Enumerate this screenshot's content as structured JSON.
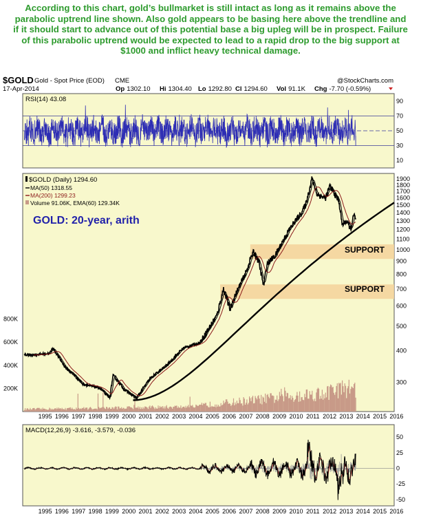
{
  "caption": "According to this chart, gold’s bullmarket is still intact as long as it remains above the parabolic uptrend line shown. Also gold appears to be basing here above the trendline and if it should start to advance out of this potential base a big upleg will be in prospect. Failure of this parabolic uptrend would be expected to lead to a rapid drop to the big support at $1000 and inflict heavy technical damage.",
  "header": {
    "symbol": "$GOLD",
    "desc": "Gold - Spot Price (EOD)",
    "exchange": "CME",
    "watermark": "@StockCharts.com",
    "date": "17-Apr-2014",
    "open_label": "Op",
    "open": "1302.10",
    "high_label": "Hi",
    "high": "1304.40",
    "low_label": "Lo",
    "low": "1292.80",
    "close_label": "Cl",
    "close": "1294.60",
    "vol_label": "Vol",
    "vol": "91.1K",
    "chg_label": "Chg",
    "chg": "-7.70 (-0.59%)"
  },
  "colors": {
    "panel_bg": "#f8f8cc",
    "price": "#000000",
    "rsi": "#2d2db4",
    "ma50": "#000000",
    "ma200": "#8b1a1a",
    "volume": "#c89a88",
    "trendline": "#000000",
    "support_band": "#f5d29a",
    "title_text": "#2222aa",
    "caption": "#2e9b2e"
  },
  "chart_data": [
    {
      "type": "line",
      "panel": "rsi",
      "legend": "RSI(14) 43.08",
      "ylim": [
        0,
        100
      ],
      "yticks": [
        10,
        30,
        50,
        70,
        90
      ],
      "reference_lines": [
        30,
        50,
        70
      ],
      "oscillation_range": [
        20,
        85
      ],
      "last_value": 43.08
    },
    {
      "type": "line",
      "panel": "price",
      "title": "GOLD: 20-year, arith",
      "legend": [
        "$GOLD (Daily) 1294.60",
        "MA(50) 1318.55",
        "MA(200) 1299.23",
        "Volume 91.06K, EMA(60) 129.34K"
      ],
      "yscale": "log",
      "ylim": [
        230,
        2000
      ],
      "yticks": [
        300,
        400,
        500,
        600,
        700,
        800,
        900,
        1000,
        1100,
        1200,
        1300,
        1400,
        1500,
        1600,
        1700,
        1800,
        1900
      ],
      "volume_ticks": [
        "200K",
        "400K",
        "600K",
        "800K"
      ],
      "volume_ylim": [
        0,
        1000
      ],
      "x_ticks": [
        "1995",
        "1996",
        "1997",
        "1998",
        "1999",
        "2000",
        "2001",
        "2002",
        "2003",
        "2004",
        "2005",
        "2006",
        "2007",
        "2008",
        "2009",
        "2010",
        "2011",
        "2012",
        "2013",
        "2014",
        "2015",
        "2016"
      ],
      "xlim": [
        1994.4,
        2016.6
      ],
      "series": [
        {
          "name": "$GOLD",
          "x": [
            1995.0,
            1996.0,
            1996.2,
            1997.0,
            1997.5,
            1998.0,
            1999.0,
            1999.6,
            1999.8,
            2000.5,
            2001.2,
            2002.0,
            2003.0,
            2004.0,
            2005.0,
            2006.0,
            2006.4,
            2006.8,
            2007.0,
            2007.8,
            2008.0,
            2008.2,
            2008.5,
            2008.8,
            2009.0,
            2009.5,
            2010.0,
            2010.5,
            2011.0,
            2011.3,
            2011.6,
            2011.67,
            2012.0,
            2012.5,
            2012.75,
            2013.0,
            2013.3,
            2013.5,
            2013.7,
            2013.9,
            2014.0,
            2014.2,
            2014.3
          ],
          "values": [
            385,
            390,
            410,
            340,
            320,
            295,
            285,
            260,
            320,
            280,
            260,
            310,
            350,
            410,
            430,
            550,
            700,
            580,
            640,
            830,
            920,
            980,
            900,
            720,
            880,
            950,
            1100,
            1250,
            1380,
            1500,
            1800,
            1920,
            1650,
            1600,
            1780,
            1680,
            1550,
            1250,
            1300,
            1250,
            1200,
            1380,
            1295
          ]
        },
        {
          "name": "MA(50)",
          "last": 1318.55
        },
        {
          "name": "MA(200)",
          "last": 1299.23
        },
        {
          "name": "Parabolic uptrend",
          "x": [
            2001.0,
            2014.3,
            2016.6
          ],
          "values": [
            255,
            1200,
            1680
          ]
        }
      ],
      "support_zones": [
        {
          "label": "SUPPORT",
          "level": 1000,
          "value_label": "1000",
          "range": [
            920,
            1050
          ],
          "from": 2008.0
        },
        {
          "label": "SUPPORT",
          "level": 700,
          "value_label": "700",
          "range": [
            640,
            730
          ],
          "from": 2006.2
        }
      ]
    },
    {
      "type": "line",
      "panel": "macd",
      "legend": "MACD(12,26,9) -3.616, -3.579, -0.036",
      "ylim": [
        -60,
        70
      ],
      "yticks": [
        -50,
        -25,
        0,
        25,
        50
      ],
      "values": {
        "macd": -3.616,
        "signal": -3.579,
        "histogram": -0.036
      }
    }
  ]
}
